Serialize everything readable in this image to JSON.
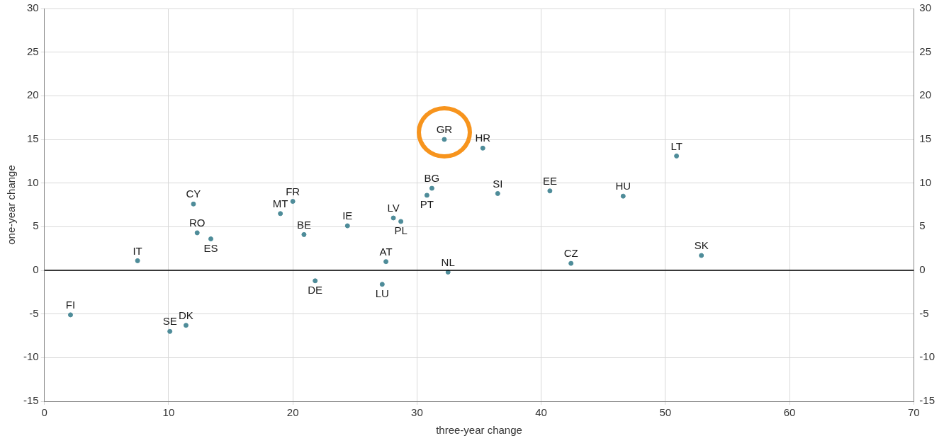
{
  "chart_data": {
    "type": "scatter",
    "xlabel": "three-year change",
    "ylabel": "one-year change",
    "xlim": [
      0,
      70
    ],
    "xticks": [
      0,
      10,
      20,
      30,
      40,
      50,
      60,
      70
    ],
    "ylim": [
      -15,
      30
    ],
    "yticks": [
      -15,
      -10,
      -5,
      0,
      5,
      10,
      15,
      20,
      25,
      30
    ],
    "y2lim": [
      -15,
      30
    ],
    "y2ticks": [
      -15,
      -10,
      -5,
      0,
      5,
      10,
      15,
      20,
      25,
      30
    ],
    "grid": true,
    "marker": "circle",
    "series": [
      {
        "color": "#4e8c99",
        "x": [
          2.1,
          7.5,
          10.1,
          11.4,
          12.0,
          12.3,
          13.4,
          19.0,
          20.0,
          20.9,
          21.8,
          24.4,
          27.5,
          27.2,
          28.1,
          28.7,
          30.8,
          31.2,
          32.2,
          32.5,
          35.3,
          36.5,
          40.7,
          42.4,
          46.6,
          50.9,
          52.9
        ],
        "values": [
          -5.1,
          1.1,
          -7.0,
          -6.3,
          7.6,
          4.3,
          3.6,
          6.5,
          7.9,
          4.1,
          -1.2,
          5.1,
          1.0,
          -1.6,
          6.0,
          5.6,
          8.6,
          9.4,
          15.0,
          -0.2,
          14.0,
          8.8,
          9.1,
          0.8,
          8.5,
          13.1,
          1.7
        ]
      }
    ],
    "ref_lines": [
      {
        "axis": "y",
        "value": 0,
        "color": "#000000"
      }
    ],
    "annotations": [
      {
        "text": "FI",
        "x": 2.1,
        "y": -5.1
      },
      {
        "text": "IT",
        "x": 7.5,
        "y": 1.1
      },
      {
        "text": "SE",
        "x": 10.1,
        "y": -7.0
      },
      {
        "text": "DK",
        "x": 11.4,
        "y": -6.3
      },
      {
        "text": "CY",
        "x": 12.0,
        "y": 7.6
      },
      {
        "text": "RO",
        "x": 12.3,
        "y": 4.3
      },
      {
        "text": "ES",
        "x": 13.4,
        "y": 3.6
      },
      {
        "text": "MT",
        "x": 19.0,
        "y": 6.5
      },
      {
        "text": "FR",
        "x": 20.0,
        "y": 7.9
      },
      {
        "text": "BE",
        "x": 20.9,
        "y": 4.1
      },
      {
        "text": "DE",
        "x": 21.8,
        "y": -1.2
      },
      {
        "text": "IE",
        "x": 24.4,
        "y": 5.1
      },
      {
        "text": "AT",
        "x": 27.5,
        "y": 1.0
      },
      {
        "text": "LU",
        "x": 27.2,
        "y": -1.6
      },
      {
        "text": "LV",
        "x": 28.1,
        "y": 6.0
      },
      {
        "text": "PL",
        "x": 28.7,
        "y": 5.6
      },
      {
        "text": "PT",
        "x": 30.8,
        "y": 8.6
      },
      {
        "text": "BG",
        "x": 31.2,
        "y": 9.4
      },
      {
        "text": "GR",
        "x": 32.2,
        "y": 15.0
      },
      {
        "text": "NL",
        "x": 32.5,
        "y": -0.2
      },
      {
        "text": "HR",
        "x": 35.3,
        "y": 14.0
      },
      {
        "text": "SI",
        "x": 36.5,
        "y": 8.8
      },
      {
        "text": "EE",
        "x": 40.7,
        "y": 9.1
      },
      {
        "text": "CZ",
        "x": 42.4,
        "y": 0.8
      },
      {
        "text": "HU",
        "x": 46.6,
        "y": 8.5
      },
      {
        "text": "LT",
        "x": 50.9,
        "y": 13.1
      },
      {
        "text": "SK",
        "x": 52.9,
        "y": 1.7
      }
    ]
  }
}
